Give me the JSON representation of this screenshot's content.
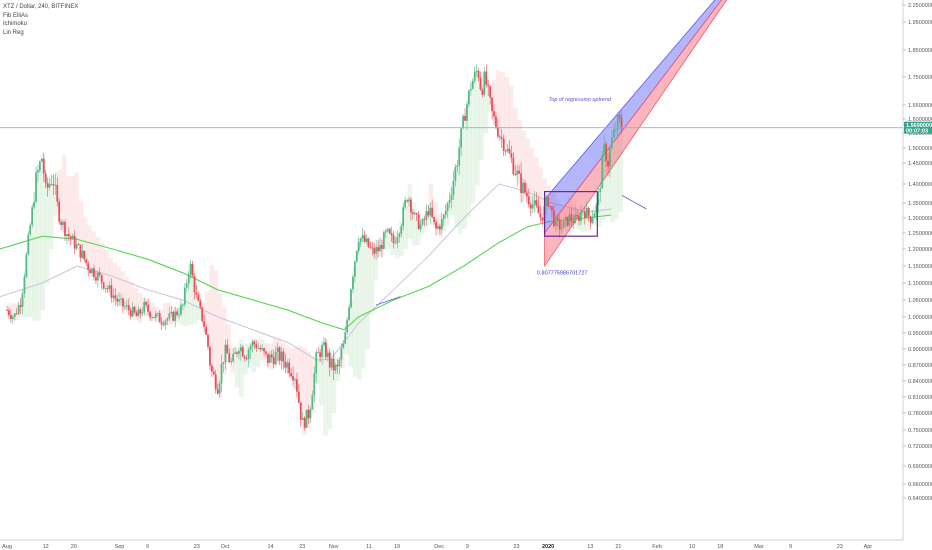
{
  "legend": {
    "symbol": "XTZ / Dollar, 240, BITFINEX",
    "indicators": [
      "Fib ElliAs",
      "Ichimoku",
      "Lin Reg"
    ]
  },
  "chart_data": {
    "type": "candlestick",
    "yaxis": {
      "min": 0.64,
      "max": 2.26,
      "ticks": [
        "2.25000000",
        "1.95000000",
        "1.85000000",
        "1.75000000",
        "1.65000000",
        "1.60000000",
        "1.55000000",
        "1.50000000",
        "1.45000000",
        "1.40000000",
        "1.35000000",
        "1.30000000",
        "1.25000000",
        "1.20000000",
        "1.15000000",
        "1.10000000",
        "1.05000000",
        "1.00000000",
        "0.95000000",
        "0.90000000",
        "0.87000000",
        "0.84000000",
        "0.81000000",
        "0.78000000",
        "0.75000000",
        "0.72000000",
        "0.69000000",
        "0.66000000",
        "0.64000000"
      ]
    },
    "xaxis": {
      "ticks": [
        {
          "label": "Aug",
          "x": 0,
          "bold": false
        },
        {
          "label": "12",
          "x": 11,
          "bold": false
        },
        {
          "label": "20",
          "x": 19,
          "bold": false
        },
        {
          "label": "Sep",
          "x": 32,
          "bold": false
        },
        {
          "label": "9",
          "x": 40,
          "bold": false
        },
        {
          "label": "23",
          "x": 54,
          "bold": false
        },
        {
          "label": "Oct",
          "x": 62,
          "bold": false
        },
        {
          "label": "14",
          "x": 75,
          "bold": false
        },
        {
          "label": "23",
          "x": 84,
          "bold": false
        },
        {
          "label": "Nov",
          "x": 93,
          "bold": false
        },
        {
          "label": "11",
          "x": 103,
          "bold": false
        },
        {
          "label": "19",
          "x": 111,
          "bold": false
        },
        {
          "label": "Dec",
          "x": 123,
          "bold": false
        },
        {
          "label": "9",
          "x": 131,
          "bold": false
        },
        {
          "label": "23",
          "x": 145,
          "bold": false
        },
        {
          "label": "2020",
          "x": 154,
          "bold": true
        },
        {
          "label": "13",
          "x": 166,
          "bold": false
        },
        {
          "label": "21",
          "x": 174,
          "bold": false
        },
        {
          "label": "Feb",
          "x": 185,
          "bold": false
        },
        {
          "label": "10",
          "x": 195,
          "bold": false
        },
        {
          "label": "18",
          "x": 203,
          "bold": false
        },
        {
          "label": "Mar",
          "x": 214,
          "bold": false
        },
        {
          "label": "9",
          "x": 223,
          "bold": false
        },
        {
          "label": "23",
          "x": 237,
          "bold": false
        },
        {
          "label": "Apr",
          "x": 245,
          "bold": false
        }
      ],
      "range": [
        -2,
        255
      ]
    },
    "current_price": {
      "value": 1.569,
      "label": "1.56900000",
      "countdown": "00:07:03"
    },
    "ohlc_path": [
      [
        0,
        1.02
      ],
      [
        2,
        1.0
      ],
      [
        4,
        1.05
      ],
      [
        6,
        1.22
      ],
      [
        8,
        1.4
      ],
      [
        10,
        1.47
      ],
      [
        11,
        1.38
      ],
      [
        13,
        1.42
      ],
      [
        15,
        1.3
      ],
      [
        17,
        1.25
      ],
      [
        19,
        1.22
      ],
      [
        21,
        1.19
      ],
      [
        23,
        1.15
      ],
      [
        26,
        1.12
      ],
      [
        29,
        1.08
      ],
      [
        32,
        1.04
      ],
      [
        35,
        1.02
      ],
      [
        37,
        1.0
      ],
      [
        39,
        1.03
      ],
      [
        41,
        1.01
      ],
      [
        44,
        0.99
      ],
      [
        47,
        1.0
      ],
      [
        50,
        1.03
      ],
      [
        52,
        1.16
      ],
      [
        54,
        1.05
      ],
      [
        56,
        0.98
      ],
      [
        58,
        0.86
      ],
      [
        60,
        0.83
      ],
      [
        62,
        0.9
      ],
      [
        64,
        0.87
      ],
      [
        66,
        0.91
      ],
      [
        68,
        0.89
      ],
      [
        70,
        0.92
      ],
      [
        72,
        0.9
      ],
      [
        74,
        0.88
      ],
      [
        77,
        0.89
      ],
      [
        80,
        0.87
      ],
      [
        82,
        0.85
      ],
      [
        84,
        0.76
      ],
      [
        86,
        0.78
      ],
      [
        88,
        0.88
      ],
      [
        90,
        0.91
      ],
      [
        92,
        0.87
      ],
      [
        94,
        0.86
      ],
      [
        96,
        0.92
      ],
      [
        98,
        1.1
      ],
      [
        100,
        1.24
      ],
      [
        102,
        1.22
      ],
      [
        104,
        1.19
      ],
      [
        106,
        1.2
      ],
      [
        108,
        1.25
      ],
      [
        110,
        1.22
      ],
      [
        112,
        1.28
      ],
      [
        114,
        1.38
      ],
      [
        116,
        1.3
      ],
      [
        118,
        1.27
      ],
      [
        120,
        1.33
      ],
      [
        122,
        1.26
      ],
      [
        124,
        1.29
      ],
      [
        126,
        1.37
      ],
      [
        128,
        1.45
      ],
      [
        130,
        1.6
      ],
      [
        132,
        1.72
      ],
      [
        134,
        1.78
      ],
      [
        135,
        1.7
      ],
      [
        136,
        1.75
      ],
      [
        138,
        1.62
      ],
      [
        140,
        1.55
      ],
      [
        142,
        1.5
      ],
      [
        144,
        1.45
      ],
      [
        146,
        1.4
      ],
      [
        148,
        1.37
      ],
      [
        150,
        1.34
      ],
      [
        152,
        1.3
      ],
      [
        154,
        1.36
      ],
      [
        156,
        1.28
      ],
      [
        158,
        1.27
      ],
      [
        160,
        1.3
      ],
      [
        162,
        1.29
      ],
      [
        164,
        1.33
      ],
      [
        166,
        1.3
      ],
      [
        168,
        1.34
      ],
      [
        170,
        1.5
      ],
      [
        171,
        1.45
      ],
      [
        172,
        1.52
      ],
      [
        174,
        1.6
      ],
      [
        175,
        1.57
      ]
    ],
    "ma_green": [
      [
        -2,
        1.2
      ],
      [
        10,
        1.24
      ],
      [
        20,
        1.23
      ],
      [
        30,
        1.2
      ],
      [
        40,
        1.17
      ],
      [
        50,
        1.13
      ],
      [
        60,
        1.08
      ],
      [
        70,
        1.05
      ],
      [
        80,
        1.02
      ],
      [
        90,
        0.98
      ],
      [
        96,
        0.96
      ],
      [
        100,
        1.0
      ],
      [
        110,
        1.05
      ],
      [
        120,
        1.09
      ],
      [
        130,
        1.15
      ],
      [
        140,
        1.22
      ],
      [
        148,
        1.27
      ],
      [
        155,
        1.29
      ],
      [
        165,
        1.3
      ],
      [
        172,
        1.31
      ]
    ],
    "ma_gray": [
      [
        -2,
        1.06
      ],
      [
        10,
        1.1
      ],
      [
        20,
        1.15
      ],
      [
        30,
        1.12
      ],
      [
        40,
        1.08
      ],
      [
        50,
        1.05
      ],
      [
        60,
        1.0
      ],
      [
        70,
        0.96
      ],
      [
        80,
        0.92
      ],
      [
        88,
        0.88
      ],
      [
        92,
        0.88
      ],
      [
        100,
        0.98
      ],
      [
        110,
        1.08
      ],
      [
        120,
        1.18
      ],
      [
        130,
        1.3
      ],
      [
        140,
        1.4
      ],
      [
        148,
        1.38
      ],
      [
        155,
        1.35
      ],
      [
        165,
        1.32
      ],
      [
        172,
        1.33
      ]
    ],
    "regression_channel": {
      "start_x": 153,
      "end_x": 210,
      "upper_start": 1.36,
      "mid_start": 1.25,
      "lower_start": 1.15,
      "slope_per_unit": 0.0175
    },
    "rectangle": {
      "x1": 153,
      "x2": 168,
      "y1": 1.24,
      "y2": 1.38
    },
    "annotations": [
      {
        "text": "Top of regression uptrend",
        "x": 163,
        "y": 1.665
      },
      {
        "text": "0.807775986701727",
        "x": 158,
        "y": 1.125
      }
    ]
  }
}
